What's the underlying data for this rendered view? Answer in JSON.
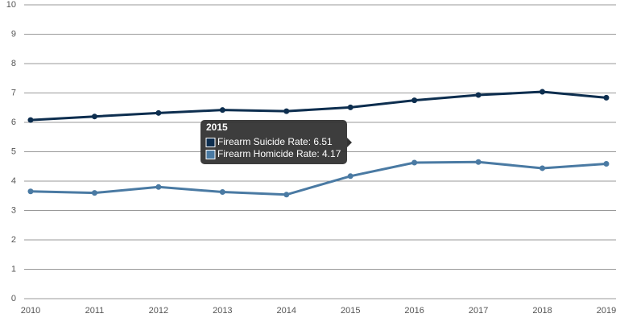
{
  "chart_data": {
    "type": "line",
    "x": [
      2010,
      2011,
      2012,
      2013,
      2014,
      2015,
      2016,
      2017,
      2018,
      2019
    ],
    "series": [
      {
        "color": "#0d2e4f",
        "values": [
          6.08,
          6.2,
          6.32,
          6.42,
          6.38,
          6.51,
          6.75,
          6.93,
          7.04,
          6.84
        ]
      },
      {
        "color": "#4a7aa3",
        "values": [
          3.65,
          3.6,
          3.8,
          3.63,
          3.54,
          4.17,
          4.63,
          4.65,
          4.44,
          4.59
        ]
      }
    ],
    "xlim": [
      2010,
      2019
    ],
    "xticks": [
      2010,
      2011,
      2012,
      2013,
      2014,
      2015,
      2016,
      2017,
      2018,
      2019
    ],
    "ylim": [
      0,
      10
    ],
    "yticks": [
      0,
      1,
      2,
      3,
      4,
      5,
      6,
      7,
      8,
      9,
      10
    ],
    "grid": true,
    "tooltip": {
      "title": "2015",
      "items": [
        "Firearm Suicide Rate: 6.51",
        "Firearm Homicide Rate: 4.17"
      ]
    }
  }
}
